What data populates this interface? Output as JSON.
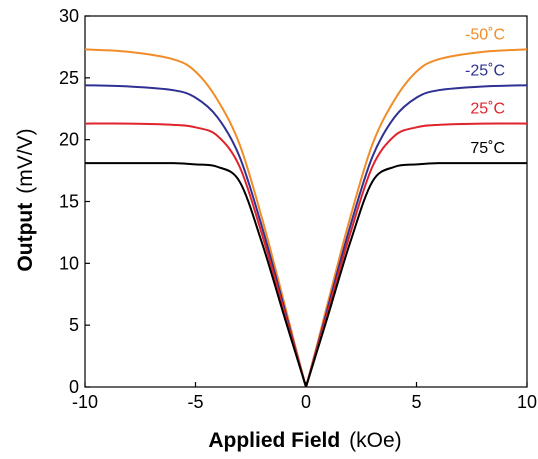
{
  "chart_data": {
    "type": "line",
    "title": "",
    "xlabel": {
      "bold": "Applied Field",
      "unit": "(kOe)"
    },
    "ylabel": {
      "bold": "Output",
      "unit": "(mV/V)"
    },
    "xlim": [
      -10,
      10
    ],
    "ylim": [
      0,
      30
    ],
    "xticks": [
      "-10",
      "-5",
      "0",
      "5",
      "10"
    ],
    "yticks": [
      "0",
      "5",
      "10",
      "15",
      "20",
      "25",
      "30"
    ],
    "grid": false,
    "legend": "inline-right",
    "x": [
      -10,
      -8,
      -6,
      -5,
      -4,
      -3,
      -2,
      -1,
      -0.5,
      0,
      0.5,
      1,
      2,
      3,
      4,
      5,
      6,
      8,
      10
    ],
    "series": [
      {
        "name": "-50˚C",
        "color": "#f28c28",
        "values": [
          27.3,
          27.1,
          26.5,
          25.5,
          23.2,
          19.6,
          13.7,
          6.9,
          3.4,
          0.0,
          3.4,
          6.9,
          13.7,
          19.6,
          23.2,
          25.5,
          26.5,
          27.1,
          27.3
        ]
      },
      {
        "name": "-25˚C",
        "color": "#2e3192",
        "values": [
          24.4,
          24.3,
          24.0,
          23.4,
          21.8,
          18.6,
          13.0,
          6.5,
          3.2,
          0.0,
          3.2,
          6.5,
          13.0,
          18.6,
          21.8,
          23.4,
          24.0,
          24.3,
          24.4
        ]
      },
      {
        "name": "25˚C",
        "color": "#e0242b",
        "values": [
          21.3,
          21.3,
          21.2,
          21.0,
          20.3,
          17.8,
          12.4,
          6.2,
          3.1,
          0.0,
          3.1,
          6.2,
          12.4,
          17.8,
          20.3,
          21.0,
          21.2,
          21.3,
          21.3
        ]
      },
      {
        "name": "75˚C",
        "color": "#000000",
        "values": [
          18.1,
          18.1,
          18.1,
          18.0,
          17.8,
          16.6,
          11.7,
          5.8,
          2.9,
          0.0,
          2.9,
          5.8,
          11.7,
          16.6,
          17.8,
          18.0,
          18.1,
          18.1,
          18.1
        ]
      }
    ]
  }
}
